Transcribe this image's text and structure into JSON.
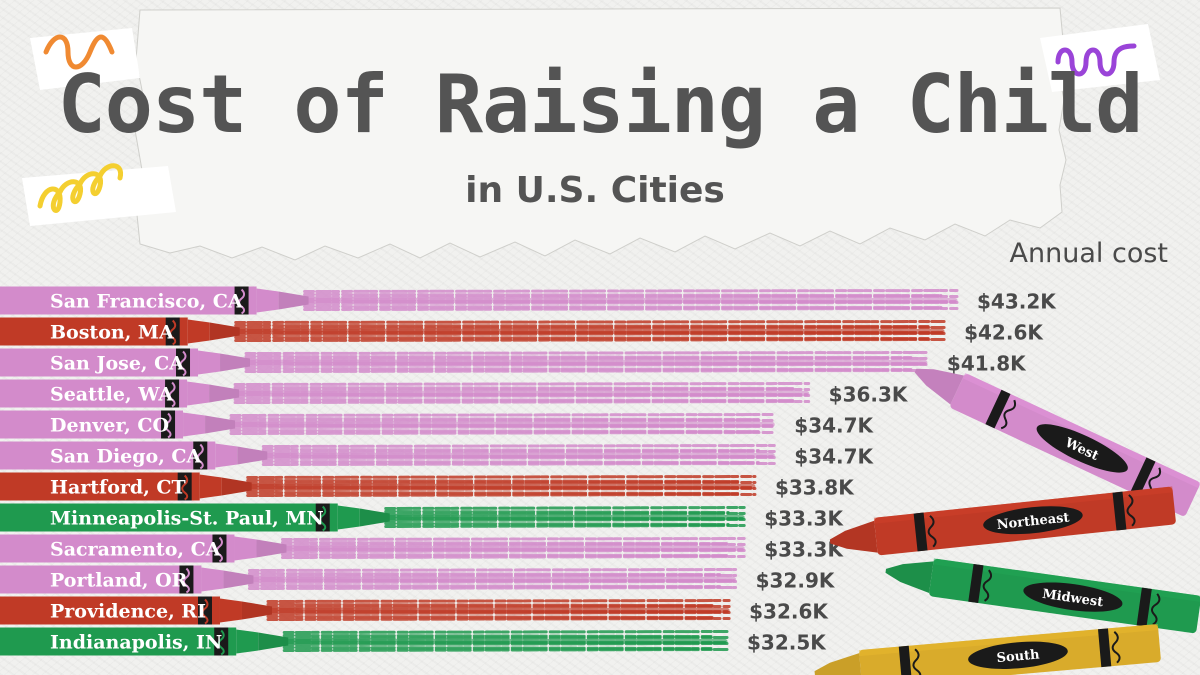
{
  "chart_data": {
    "type": "bar",
    "title": "Cost of Raising a Child",
    "subtitle": "in U.S. Cities",
    "value_label": "Annual cost",
    "orientation": "horizontal",
    "categories": [
      "San Francisco, CA",
      "Boston, MA",
      "San Jose, CA",
      "Seattle, WA",
      "Denver, CO",
      "San Diego, CA",
      "Hartford, CT",
      "Minneapolis-St. Paul, MN",
      "Sacramento, CA",
      "Portland, OR",
      "Providence, RI",
      "Indianapolis, IN"
    ],
    "values": [
      43.2,
      42.6,
      41.8,
      36.3,
      34.7,
      34.7,
      33.8,
      33.3,
      33.3,
      32.9,
      32.6,
      32.5
    ],
    "value_labels": [
      "$43.2K",
      "$42.6K",
      "$41.8K",
      "$36.3K",
      "$34.7K",
      "$34.7K",
      "$33.8K",
      "$33.3K",
      "$33.3K",
      "$32.9K",
      "$32.6K",
      "$32.5K"
    ],
    "regions": [
      "West",
      "Northeast",
      "West",
      "West",
      "West",
      "West",
      "Northeast",
      "Midwest",
      "West",
      "West",
      "Northeast",
      "Midwest"
    ],
    "units": "thousand USD per year",
    "legend": [
      {
        "name": "West",
        "color": "#d38bcb"
      },
      {
        "name": "Northeast",
        "color": "#c03a26"
      },
      {
        "name": "Midwest",
        "color": "#1f9a4f"
      },
      {
        "name": "South",
        "color": "#d9ab2b"
      }
    ],
    "legend_position": "bottom-right"
  }
}
